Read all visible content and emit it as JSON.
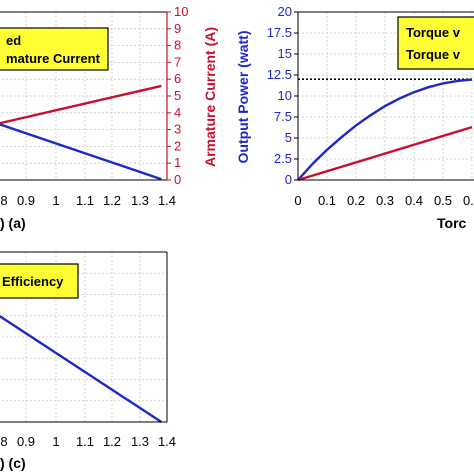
{
  "chart_data": [
    {
      "type": "line",
      "panel": "(a)",
      "xlabel_fragment": ") (a)",
      "x_ticks": [
        "8",
        "0.9",
        "1",
        "1.1",
        "1.2",
        "1.3",
        "1.4"
      ],
      "xlim": [
        0.8,
        1.4
      ],
      "y2label": "Armature Current (A)",
      "y2lim": [
        0,
        10
      ],
      "y2_ticks": [
        "0",
        "1",
        "2",
        "3",
        "4",
        "5",
        "6",
        "7",
        "8",
        "9",
        "10"
      ],
      "legend_lines": [
        "ed",
        "mature Current"
      ],
      "series": [
        {
          "name": "Armature Current",
          "color": "#c8102e",
          "x": [
            0.8,
            1.38
          ],
          "y": [
            3.35,
            5.6
          ]
        },
        {
          "color": "#1e28c8",
          "x": [
            0.8,
            1.38
          ],
          "y": [
            3.35,
            0.05
          ]
        }
      ]
    },
    {
      "type": "line",
      "panel": "(b)",
      "xlabel_fragment": "Torc",
      "x_ticks": [
        "0",
        "0.1",
        "0.2",
        "0.3",
        "0.4",
        "0.5",
        "0.6"
      ],
      "xlim": [
        0,
        0.6
      ],
      "ylabel": "Output Power (watt)",
      "ylim": [
        0,
        20
      ],
      "y_ticks": [
        "0",
        "2.5",
        "5",
        "7.5",
        "10",
        "12.5",
        "15",
        "17.5",
        "20"
      ],
      "legend_lines": [
        "Torque v",
        "Torque v"
      ],
      "reference_line_y": 12,
      "series": [
        {
          "color": "#1e28c8",
          "x": [
            0,
            0.05,
            0.1,
            0.15,
            0.2,
            0.25,
            0.3,
            0.35,
            0.4,
            0.45,
            0.5,
            0.55,
            0.6
          ],
          "y": [
            0,
            1.9,
            3.6,
            5.1,
            6.5,
            7.7,
            8.8,
            9.7,
            10.45,
            11.05,
            11.5,
            11.8,
            11.95
          ]
        },
        {
          "color": "#c8102e",
          "x": [
            0,
            0.6
          ],
          "y": [
            0,
            6.3
          ]
        }
      ]
    },
    {
      "type": "line",
      "panel": "(c)",
      "xlabel_fragment": ") (c)",
      "x_ticks": [
        "8",
        "0.9",
        "1",
        "1.1",
        "1.2",
        "1.3",
        "1.4"
      ],
      "xlim": [
        0.8,
        1.4
      ],
      "legend_lines": [
        "Efficiency"
      ],
      "series": [
        {
          "color": "#1e28c8",
          "x": [
            0.8,
            1.38
          ],
          "y_frac": [
            0.63,
            0.0
          ]
        }
      ]
    }
  ]
}
